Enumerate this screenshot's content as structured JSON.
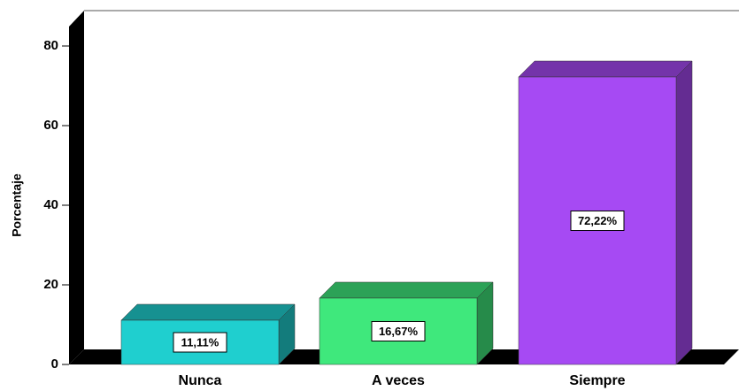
{
  "chart_data": {
    "type": "bar3d",
    "y_label": "Porcentaje",
    "categories": [
      "Nunca",
      "A veces",
      "Siempre"
    ],
    "values": [
      11.11,
      16.67,
      72.22
    ],
    "value_labels": [
      "11,11%",
      "16,67%",
      "72,22%"
    ],
    "colors": [
      "#1fcfcf",
      "#3fe87c",
      "#a64af3"
    ],
    "ylim": [
      0,
      80
    ],
    "yticks": [
      0,
      20,
      40,
      60,
      80
    ]
  }
}
